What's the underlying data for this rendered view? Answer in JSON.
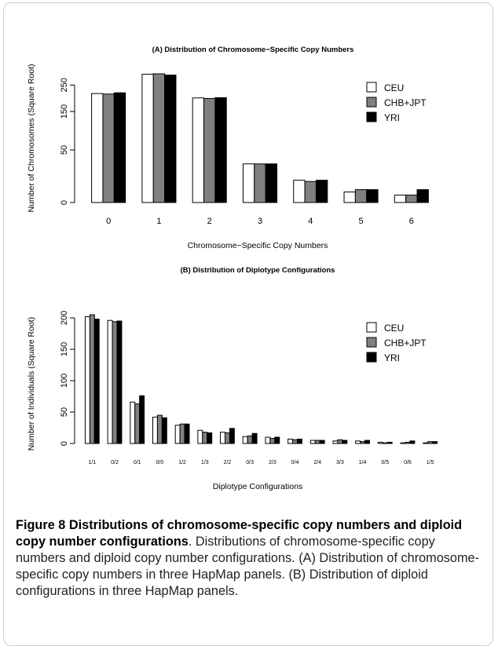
{
  "chart_data": [
    {
      "type": "bar",
      "title": "(A) Distribution of Chromosome−Specific Copy Numbers",
      "xlabel": "Chromosome−Specific Copy Numbers",
      "ylabel": "Number of Chromosomes (Square Root)",
      "categories": [
        "0",
        "1",
        "2",
        "3",
        "4",
        "5",
        "6"
      ],
      "yticks": [
        0,
        50,
        150,
        250
      ],
      "ylim": [
        0,
        300
      ],
      "y_scale": "sqrt",
      "legend_position": "right",
      "series": [
        {
          "name": "CEU",
          "color": "#ffffff",
          "values": [
            215,
            298,
            198,
            27,
            9,
            2,
            1
          ]
        },
        {
          "name": "CHB+JPT",
          "color": "#808080",
          "values": [
            213,
            300,
            196,
            27,
            8,
            3,
            1
          ]
        },
        {
          "name": "YRI",
          "color": "#000000",
          "values": [
            218,
            294,
            199,
            27,
            9,
            3,
            3
          ]
        }
      ]
    },
    {
      "type": "bar",
      "title": "(B) Distribution of Diplotype Configurations",
      "xlabel": "Diplotype Configurations",
      "ylabel": "Number of Individuals (Square Root)",
      "categories": [
        "1/1",
        "0/2",
        "0/1",
        "0/0",
        "1/2",
        "1/3",
        "2/2",
        "0/3",
        "2/3",
        "0/4",
        "2/4",
        "3/3",
        "1/4",
        "0/5",
        "0/6",
        "1/5"
      ],
      "yticks": [
        0,
        50,
        100,
        150,
        200
      ],
      "ylim": [
        0,
        210
      ],
      "legend_position": "right",
      "series": [
        {
          "name": "CEU",
          "color": "#ffffff",
          "values": [
            202,
            196,
            66,
            42,
            29,
            21,
            18,
            11,
            10,
            7,
            5,
            4,
            4,
            2,
            1,
            1
          ]
        },
        {
          "name": "CHB+JPT",
          "color": "#808080",
          "values": [
            205,
            194,
            63,
            45,
            31,
            18,
            17,
            12,
            8,
            6,
            5,
            6,
            3,
            1,
            2,
            3
          ]
        },
        {
          "name": "YRI",
          "color": "#000000",
          "values": [
            198,
            195,
            76,
            41,
            31,
            17,
            24,
            16,
            10,
            7,
            5,
            5,
            5,
            2,
            4,
            3
          ]
        }
      ]
    }
  ],
  "caption": {
    "label": "Figure 8 Distributions of chromosome-specific copy numbers and diploid copy number configurations",
    "text": ". Distributions of chromosome-specific copy numbers and diploid copy number configurations. (A) Distribution of chromosome-specific copy numbers in three HapMap panels. (B) Distribution of diploid configurations in three HapMap panels."
  }
}
